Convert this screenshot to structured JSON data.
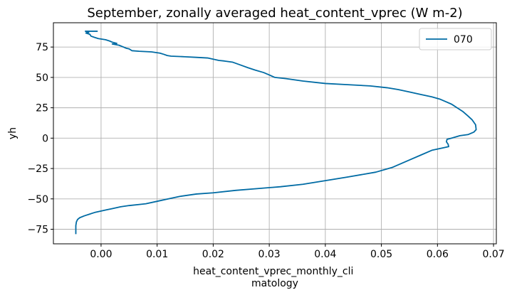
{
  "chart_data": {
    "type": "line",
    "title": "September, zonally averaged heat_content_vprec (W m-2)",
    "xlabel_lines": [
      "heat_content_vprec_monthly_cli",
      "matology"
    ],
    "ylabel": "yh",
    "xlim": [
      -0.0085,
      0.0705
    ],
    "ylim": [
      -87,
      95
    ],
    "xticks": [
      0.0,
      0.01,
      0.02,
      0.03,
      0.04,
      0.05,
      0.06,
      0.07
    ],
    "xtick_labels": [
      "0.00",
      "0.01",
      "0.02",
      "0.03",
      "0.04",
      "0.05",
      "0.06",
      "0.07"
    ],
    "yticks": [
      -75,
      -50,
      -25,
      0,
      25,
      50,
      75
    ],
    "ytick_labels": [
      "−75",
      "−50",
      "−25",
      "0",
      "25",
      "50",
      "75"
    ],
    "grid": true,
    "legend_position": "top-right",
    "series": [
      {
        "name": "070",
        "color": "#006ba4",
        "points": [
          [
            -0.0006,
            88
          ],
          [
            -0.0028,
            88
          ],
          [
            -0.0022,
            87
          ],
          [
            -0.0027,
            86.5
          ],
          [
            -0.002,
            85.5
          ],
          [
            -0.0018,
            84
          ],
          [
            -0.0012,
            83
          ],
          [
            -0.0005,
            82
          ],
          [
            0.0008,
            81
          ],
          [
            0.0015,
            80
          ],
          [
            0.002,
            79
          ],
          [
            0.0028,
            78
          ],
          [
            0.002,
            77.5
          ],
          [
            0.0032,
            76.5
          ],
          [
            0.004,
            75
          ],
          [
            0.0045,
            74
          ],
          [
            0.005,
            73.5
          ],
          [
            0.0055,
            72
          ],
          [
            0.0068,
            71.5
          ],
          [
            0.009,
            71
          ],
          [
            0.0105,
            70
          ],
          [
            0.0112,
            69
          ],
          [
            0.0118,
            68
          ],
          [
            0.0125,
            67.5
          ],
          [
            0.015,
            67
          ],
          [
            0.017,
            66.5
          ],
          [
            0.019,
            66
          ],
          [
            0.02,
            65
          ],
          [
            0.021,
            64
          ],
          [
            0.022,
            63.5
          ],
          [
            0.0235,
            62.5
          ],
          [
            0.025,
            60
          ],
          [
            0.0262,
            58
          ],
          [
            0.0275,
            56
          ],
          [
            0.029,
            54
          ],
          [
            0.03,
            52
          ],
          [
            0.031,
            50
          ],
          [
            0.033,
            49
          ],
          [
            0.036,
            47
          ],
          [
            0.04,
            45
          ],
          [
            0.044,
            44
          ],
          [
            0.048,
            43
          ],
          [
            0.051,
            41.5
          ],
          [
            0.053,
            40
          ],
          [
            0.055,
            38
          ],
          [
            0.057,
            36
          ],
          [
            0.059,
            34
          ],
          [
            0.0605,
            32
          ],
          [
            0.0615,
            30
          ],
          [
            0.0625,
            28
          ],
          [
            0.0635,
            25
          ],
          [
            0.0645,
            22
          ],
          [
            0.0655,
            18
          ],
          [
            0.0662,
            15
          ],
          [
            0.0668,
            11
          ],
          [
            0.0669,
            7
          ],
          [
            0.0665,
            5
          ],
          [
            0.0655,
            3
          ],
          [
            0.064,
            2
          ],
          [
            0.0625,
            0
          ],
          [
            0.0617,
            -1
          ],
          [
            0.0616,
            -3
          ],
          [
            0.0619,
            -5
          ],
          [
            0.062,
            -7
          ],
          [
            0.061,
            -8
          ],
          [
            0.059,
            -10
          ],
          [
            0.057,
            -14
          ],
          [
            0.055,
            -18
          ],
          [
            0.052,
            -24
          ],
          [
            0.049,
            -28
          ],
          [
            0.044,
            -32
          ],
          [
            0.04,
            -35
          ],
          [
            0.036,
            -38
          ],
          [
            0.032,
            -40
          ],
          [
            0.028,
            -41.5
          ],
          [
            0.024,
            -43
          ],
          [
            0.02,
            -45
          ],
          [
            0.017,
            -46
          ],
          [
            0.014,
            -48
          ],
          [
            0.012,
            -50
          ],
          [
            0.01,
            -52
          ],
          [
            0.008,
            -54
          ],
          [
            0.007,
            -54.5
          ],
          [
            0.005,
            -55.5
          ],
          [
            0.0035,
            -56.5
          ],
          [
            0.002,
            -58
          ],
          [
            0.001,
            -59
          ],
          [
            0.0,
            -60
          ],
          [
            -0.001,
            -61
          ],
          [
            -0.002,
            -62.5
          ],
          [
            -0.003,
            -64
          ],
          [
            -0.0038,
            -65.5
          ],
          [
            -0.0042,
            -67
          ],
          [
            -0.0044,
            -69
          ],
          [
            -0.0045,
            -72
          ],
          [
            -0.0045,
            -76
          ],
          [
            -0.0045,
            -79
          ]
        ]
      }
    ]
  }
}
